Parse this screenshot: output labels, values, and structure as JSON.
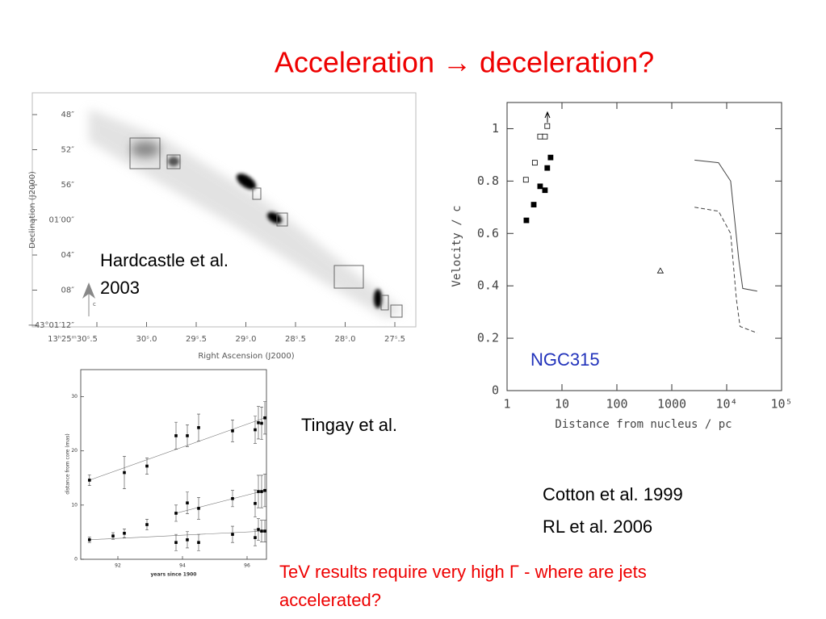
{
  "title": "Acceleration → deceleration?",
  "captions": {
    "hardcastle": [
      "Hardcastle et al.",
      "2003"
    ],
    "tingay": "Tingay et al.",
    "cotton": [
      "Cotton et al. 1999",
      "RL et al. 2006"
    ],
    "tev": [
      "TeV results require very high Γ - where are jets",
      "accelerated?"
    ]
  },
  "image_figure": {
    "xlabel": "Right Ascension (J2000)",
    "ylabel": "Declination (J2000)",
    "xticks": [
      "13ʰ25ᵐ30ˢ.5",
      "30ˢ.0",
      "29ˢ.5",
      "29ˢ.0",
      "28ˢ.5",
      "28ˢ.0",
      "27ˢ.5"
    ],
    "yticks": [
      "48″",
      "52″",
      "56″",
      "01′00″",
      "04″",
      "08″",
      "−43°01′12″"
    ],
    "marker_label": "c"
  },
  "velocity_chart": {
    "type": "scatter",
    "xlabel": "Distance from nucleus / pc",
    "ylabel": "Velocity / c",
    "annotation": "NGC315",
    "xscale": "log",
    "xlim": [
      1,
      100000
    ],
    "ylim": [
      0,
      1.1
    ],
    "xticks": [
      1,
      10,
      100,
      1000,
      {
        "value": 10000,
        "label": "10⁴"
      },
      {
        "value": 100000,
        "label": "10⁵"
      }
    ],
    "yticks": [
      0,
      0.2,
      0.4,
      0.6,
      0.8,
      1
    ],
    "points": [
      {
        "marker": "square-filled",
        "x": [
          2.25,
          3.06,
          4.0,
          4.9,
          5.4,
          6.2
        ],
        "values": [
          0.65,
          0.71,
          0.78,
          0.765,
          0.85,
          0.89
        ]
      },
      {
        "marker": "square-open",
        "x": [
          2.2,
          3.2,
          4.0,
          4.9,
          5.4
        ],
        "values": [
          0.805,
          0.87,
          0.97,
          0.97,
          1.01
        ]
      },
      {
        "marker": "triangle-open",
        "x": [
          620
        ],
        "values": [
          0.457
        ]
      }
    ],
    "lines": [
      {
        "dash": false,
        "x": [
          2600,
          7100,
          11800,
          16600,
          19600,
          36000
        ],
        "values": [
          0.88,
          0.87,
          0.8,
          0.5,
          0.39,
          0.38
        ]
      },
      {
        "dash": true,
        "x": [
          2600,
          7100,
          11800,
          15000,
          17500,
          36000
        ],
        "values": [
          0.7,
          0.685,
          0.6,
          0.35,
          0.245,
          0.22
        ]
      }
    ]
  },
  "tingay_chart": {
    "type": "scatter",
    "xlabel": "years since 1900",
    "ylabel": "distance from core (mas)",
    "xlim": [
      90.85,
      96.6
    ],
    "ylim": [
      0,
      35
    ],
    "xticks": [
      92,
      94,
      96
    ],
    "yticks": [
      0,
      10,
      20,
      30
    ],
    "series": [
      {
        "x": [
          91.12,
          92.2,
          92.9,
          93.8,
          94.15,
          94.5,
          95.55,
          96.25,
          96.35,
          96.45,
          96.55
        ],
        "values": [
          14.6,
          16,
          17.2,
          22.8,
          22.8,
          24.3,
          23.7,
          23.9,
          25.2,
          25.1,
          26.1
        ],
        "errors": [
          1,
          3,
          1.5,
          2.5,
          2,
          2.5,
          2,
          2.5,
          3,
          3,
          3
        ]
      },
      {
        "x": [
          93.8,
          94.15,
          94.5,
          95.55,
          96.25,
          96.35,
          96.45,
          96.55
        ],
        "values": [
          8.5,
          10.4,
          9.4,
          11.2,
          10.3,
          12.5,
          12.5,
          12.7
        ],
        "errors": [
          1.5,
          2,
          2,
          1.5,
          2.5,
          3,
          3,
          3
        ]
      },
      {
        "x": [
          91.12,
          91.85,
          92.2,
          92.9,
          93.8,
          94.15,
          94.5,
          95.55,
          96.25,
          96.35,
          96.45,
          96.55
        ],
        "values": [
          3.6,
          4.3,
          4.8,
          6.4,
          3.1,
          3.6,
          3.1,
          4.6,
          4.0,
          5.5,
          5.2,
          5.2
        ],
        "errors": [
          0.5,
          0.6,
          0.8,
          1,
          1.5,
          1.5,
          1.5,
          1.5,
          1.5,
          2,
          2,
          2
        ]
      }
    ]
  }
}
